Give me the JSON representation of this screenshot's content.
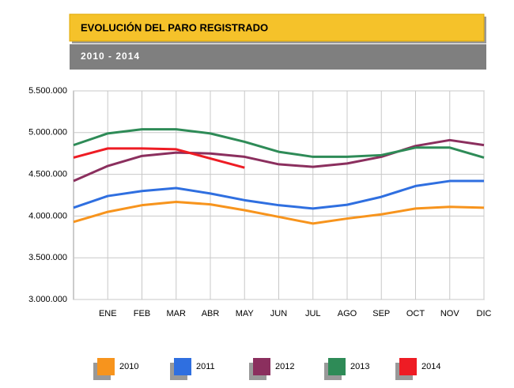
{
  "chart_data": {
    "type": "line",
    "title": "EVOLUCIÓN DEL PARO REGISTRADO",
    "subtitle": "2010 - 2014",
    "categories": [
      null,
      "ENE",
      "FEB",
      "MAR",
      "ABR",
      "MAY",
      "JUN",
      "JUL",
      "AGO",
      "SEP",
      "OCT",
      "NOV",
      "DIC"
    ],
    "series": [
      {
        "name": "2010",
        "color": "#f7941d",
        "values": [
          3930000,
          4050000,
          4130000,
          4170000,
          4140000,
          4070000,
          3990000,
          3910000,
          3970000,
          4020000,
          4090000,
          4110000,
          4100000
        ]
      },
      {
        "name": "2011",
        "color": "#2f6fe0",
        "values": [
          4100000,
          4240000,
          4300000,
          4335000,
          4270000,
          4190000,
          4130000,
          4090000,
          4135000,
          4230000,
          4360000,
          4420000,
          4420000
        ]
      },
      {
        "name": "2012",
        "color": "#8b2f5e",
        "values": [
          4420000,
          4600000,
          4720000,
          4760000,
          4750000,
          4710000,
          4620000,
          4590000,
          4630000,
          4710000,
          4840000,
          4910000,
          4850000
        ]
      },
      {
        "name": "2013",
        "color": "#2e8b57",
        "values": [
          4850000,
          4990000,
          5040000,
          5040000,
          4990000,
          4890000,
          4770000,
          4710000,
          4710000,
          4730000,
          4820000,
          4820000,
          4700000
        ]
      },
      {
        "name": "2014",
        "color": "#ee1c24",
        "values": [
          4700000,
          4810000,
          4810000,
          4800000,
          4690000,
          4580000,
          null,
          null,
          null,
          null,
          null,
          null,
          null
        ]
      }
    ],
    "ylim": [
      3000000,
      5500000
    ],
    "yticks": [
      {
        "value": 3000000,
        "label": "3.000.000"
      },
      {
        "value": 3500000,
        "label": "3.500.000"
      },
      {
        "value": 4000000,
        "label": "4.000.000"
      },
      {
        "value": 4500000,
        "label": "4.500.000"
      },
      {
        "value": 5000000,
        "label": "5.000.000"
      },
      {
        "value": 5500000,
        "label": "5.500.000"
      }
    ],
    "grid": true
  }
}
